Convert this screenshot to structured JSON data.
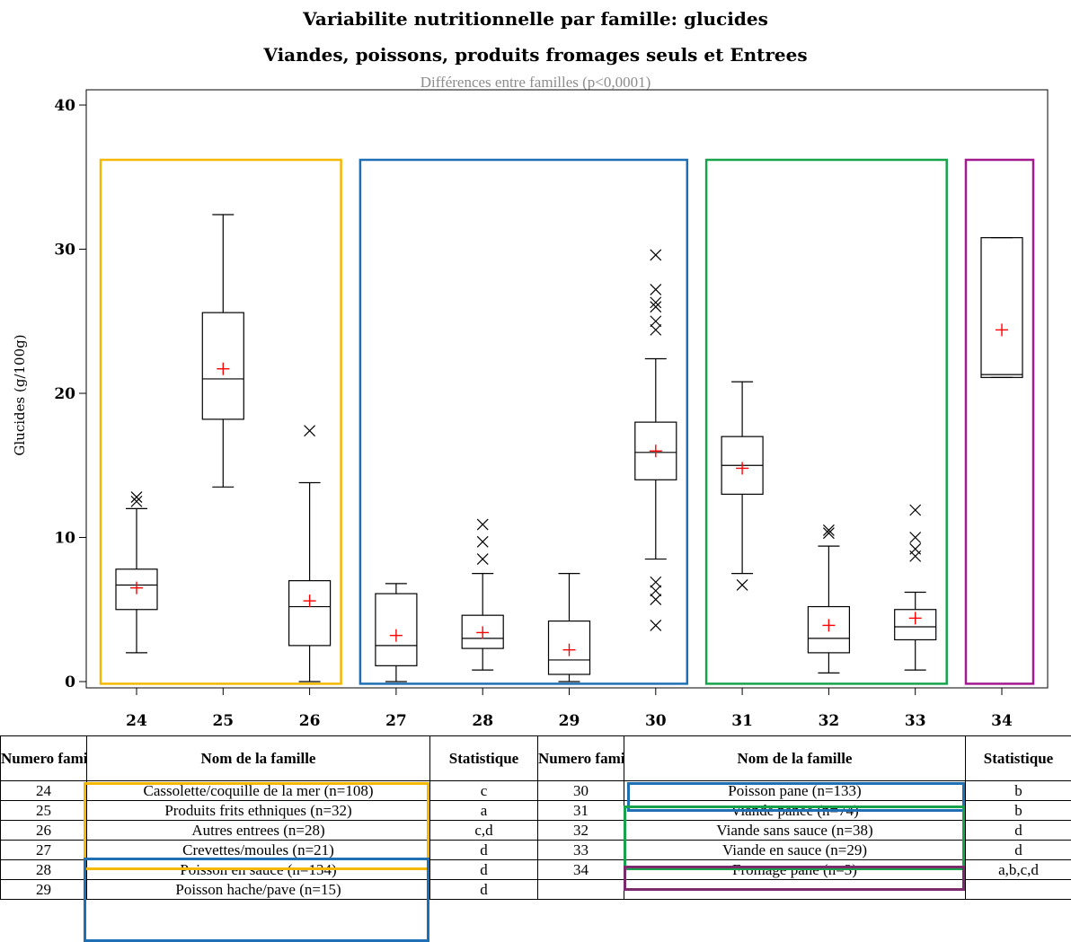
{
  "chart_data": {
    "type": "box",
    "title_line1": "Variabilite nutritionnelle par famille: glucides",
    "title_line2": "Viandes, poissons, produits fromages seuls et Entrees",
    "subtitle": "Différences entre familles (p<0,0001)",
    "ylabel": "Glucides (g/100g)",
    "xlabel": "",
    "ylim": [
      0,
      40
    ],
    "yticks": [
      "0",
      "10",
      "20",
      "30",
      "40"
    ],
    "ytick_values": [
      0,
      10,
      20,
      30,
      40
    ],
    "categories": [
      "24",
      "25",
      "26",
      "27",
      "28",
      "29",
      "30",
      "31",
      "32",
      "33",
      "34"
    ],
    "boxes": [
      {
        "family": "24",
        "whisker_low": 2.0,
        "q1": 5.0,
        "median": 6.7,
        "q3": 7.8,
        "whisker_high": 12.0,
        "mean": 6.5,
        "outliers": [
          12.5,
          12.8
        ]
      },
      {
        "family": "25",
        "whisker_low": 13.5,
        "q1": 18.2,
        "median": 21.0,
        "q3": 25.6,
        "whisker_high": 32.4,
        "mean": 21.7,
        "outliers": []
      },
      {
        "family": "26",
        "whisker_low": 0.0,
        "q1": 2.5,
        "median": 5.2,
        "q3": 7.0,
        "whisker_high": 13.8,
        "mean": 5.6,
        "outliers": [
          17.4
        ]
      },
      {
        "family": "27",
        "whisker_low": 0.0,
        "q1": 1.1,
        "median": 2.5,
        "q3": 6.1,
        "whisker_high": 6.8,
        "mean": 3.2,
        "outliers": []
      },
      {
        "family": "28",
        "whisker_low": 0.8,
        "q1": 2.3,
        "median": 3.0,
        "q3": 4.6,
        "whisker_high": 7.5,
        "mean": 3.4,
        "outliers": [
          8.5,
          9.7,
          10.9
        ]
      },
      {
        "family": "29",
        "whisker_low": 0.0,
        "q1": 0.5,
        "median": 1.5,
        "q3": 4.2,
        "whisker_high": 7.5,
        "mean": 2.2,
        "outliers": []
      },
      {
        "family": "30",
        "whisker_low": 8.5,
        "q1": 14.0,
        "median": 15.9,
        "q3": 18.0,
        "whisker_high": 22.4,
        "mean": 16.0,
        "outliers": [
          3.9,
          5.7,
          6.3,
          6.9,
          24.4,
          25.0,
          26.0,
          26.3,
          27.2,
          29.6
        ]
      },
      {
        "family": "31",
        "whisker_low": 7.5,
        "q1": 13.0,
        "median": 15.0,
        "q3": 17.0,
        "whisker_high": 20.8,
        "mean": 14.8,
        "outliers": [
          6.7
        ]
      },
      {
        "family": "32",
        "whisker_low": 0.6,
        "q1": 2.0,
        "median": 3.0,
        "q3": 5.2,
        "whisker_high": 9.4,
        "mean": 3.9,
        "outliers": [
          10.3,
          10.5
        ]
      },
      {
        "family": "33",
        "whisker_low": 0.8,
        "q1": 2.9,
        "median": 3.8,
        "q3": 5.0,
        "whisker_high": 6.2,
        "mean": 4.4,
        "outliers": [
          8.7,
          9.2,
          10.0,
          11.9
        ]
      },
      {
        "family": "34",
        "whisker_low": 21.1,
        "q1": 21.1,
        "median": 21.3,
        "q3": 30.8,
        "whisker_high": 30.8,
        "mean": 24.4,
        "outliers": []
      }
    ],
    "groups": [
      {
        "color": "#f5b800",
        "families": [
          "24",
          "25",
          "26"
        ]
      },
      {
        "color": "#1f6fb5",
        "families": [
          "27",
          "28",
          "29",
          "30"
        ]
      },
      {
        "color": "#16a34a",
        "families": [
          "31",
          "32",
          "33"
        ]
      },
      {
        "color": "#a21a8e",
        "families": [
          "34"
        ]
      }
    ],
    "box_color": "#000000",
    "mean_color": "#ff0000",
    "grid": false
  },
  "table": {
    "headers": [
      "Numero famille",
      "Nom de la famille",
      "Statistique",
      "Numero famille",
      "Nom de la famille",
      "Statistique"
    ],
    "rows": [
      [
        "24",
        "Cassolette/coquille de la mer (n=108)",
        "c",
        "30",
        "Poisson pane (n=133)",
        "b"
      ],
      [
        "25",
        "Produits frits ethniques (n=32)",
        "a",
        "31",
        "Viande panee (n=74)",
        "b"
      ],
      [
        "26",
        "Autres entrees (n=28)",
        "c,d",
        "32",
        "Viande sans sauce (n=38)",
        "d"
      ],
      [
        "27",
        "Crevettes/moules (n=21)",
        "d",
        "33",
        "Viande en sauce (n=29)",
        "d"
      ],
      [
        "28",
        "Poisson en sauce (n=134)",
        "d",
        "34",
        "Fromage pane (n=3)",
        "a,b,c,d"
      ],
      [
        "29",
        "Poisson hache/pave (n=15)",
        "d",
        "",
        "",
        ""
      ]
    ]
  }
}
